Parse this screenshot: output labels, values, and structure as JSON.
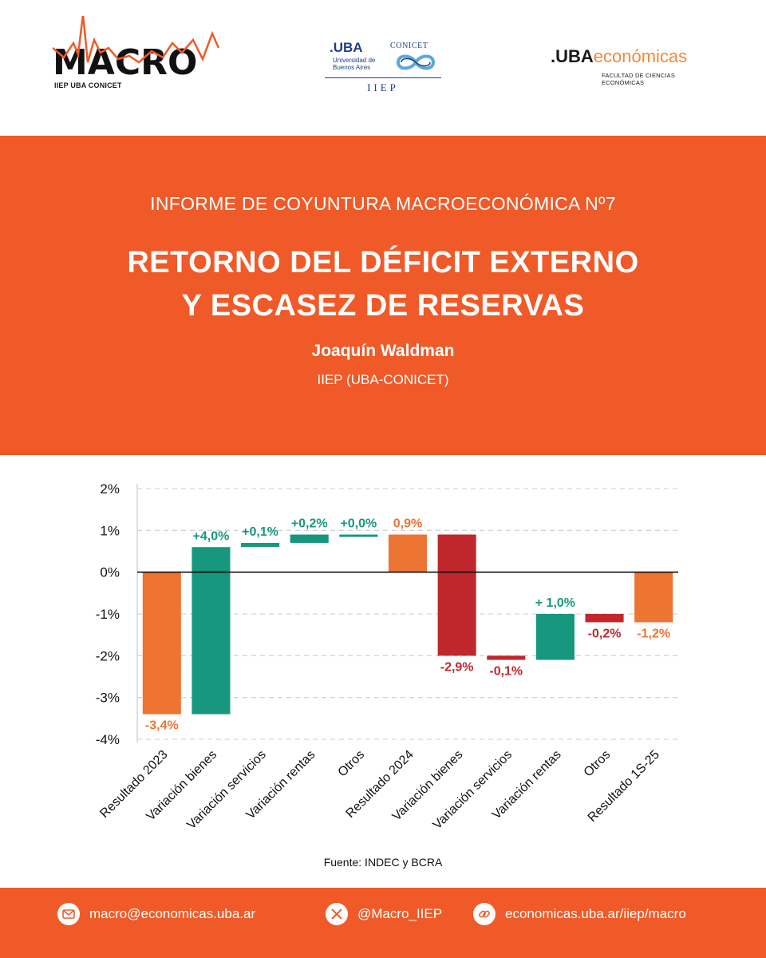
{
  "header": {
    "macro_logo": {
      "name": "MACRO",
      "subtitle": "IIEP UBA CONICET"
    },
    "center_logo": {
      "uba": ".UBA",
      "uba_sub1": "Universidad de",
      "uba_sub2": "Buenos Aires",
      "conicet": "CONICET",
      "iiep": "IIEP"
    },
    "right_logo": {
      "uba": ".UBA",
      "eco": "económicas",
      "sub": "FACULTAD DE CIENCIAS ECONÓMICAS"
    }
  },
  "banner": {
    "kicker": "INFORME DE COYUNTURA MACROECONÓMICA Nº7",
    "title_line1": "RETORNO DEL DÉFICIT EXTERNO",
    "title_line2": "Y ESCASEZ DE RESERVAS",
    "author": "Joaquín Waldman",
    "affiliation": "IIEP (UBA-CONICET)"
  },
  "chart_data": {
    "type": "bar",
    "subtype": "waterfall",
    "categories": [
      "Resultado 2023",
      "Variación bienes",
      "Variación servicios",
      "Variación rentas",
      "Otros",
      "Resultado 2024",
      "Variación bienes",
      "Variación servicios",
      "Variación rentas",
      "Otros",
      "Resultado 1S-25"
    ],
    "bars": [
      {
        "start": 0,
        "end": -3.4,
        "label": "-3,4%",
        "kind": "total"
      },
      {
        "start": -3.4,
        "end": 0.6,
        "label": "+4,0%",
        "kind": "increase"
      },
      {
        "start": 0.6,
        "end": 0.7,
        "label": "+0,1%",
        "kind": "increase"
      },
      {
        "start": 0.7,
        "end": 0.9,
        "label": "+0,2%",
        "kind": "increase"
      },
      {
        "start": 0.9,
        "end": 0.9,
        "label": "+0,0%",
        "kind": "increase"
      },
      {
        "start": 0,
        "end": 0.9,
        "label": "0,9%",
        "kind": "total"
      },
      {
        "start": 0.9,
        "end": -2.0,
        "label": "-2,9%",
        "kind": "decrease"
      },
      {
        "start": -2.0,
        "end": -2.1,
        "label": "-0,1%",
        "kind": "decrease"
      },
      {
        "start": -2.1,
        "end": -1.0,
        "label": "+ 1,0%",
        "kind": "increase"
      },
      {
        "start": -1.0,
        "end": -1.2,
        "label": "-0,2%",
        "kind": "decrease"
      },
      {
        "start": 0,
        "end": -1.2,
        "label": "-1,2%",
        "kind": "total"
      }
    ],
    "ylim": [
      -4,
      2
    ],
    "yticks": [
      2,
      1,
      0,
      -1,
      -2,
      -3,
      -4
    ],
    "ytick_labels": [
      "2%",
      "1%",
      "0%",
      "-1%",
      "-2%",
      "-3%",
      "-4%"
    ],
    "grid": "horizontal-dashed",
    "colors": {
      "total": "#ee7434",
      "increase": "#17977e",
      "decrease": "#c0272d"
    },
    "source": "Fuente: INDEC y BCRA"
  },
  "footer": {
    "email": "macro@economicas.uba.ar",
    "twitter": "@Macro_IIEP",
    "web": "economicas.uba.ar/iiep/macro"
  },
  "colors": {
    "brand_orange": "#f05a28",
    "accent_orange": "#f08a3a",
    "uba_blue": "#1d3f86"
  }
}
